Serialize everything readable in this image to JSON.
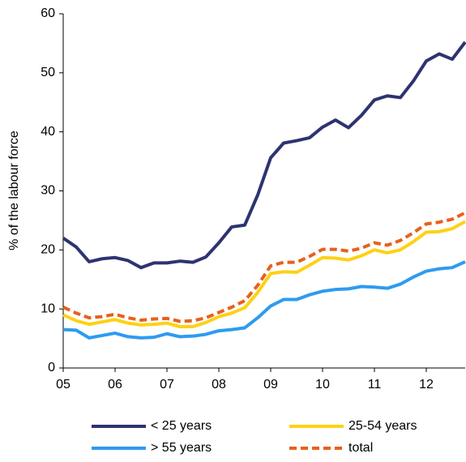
{
  "chart_data": {
    "type": "line",
    "ylabel": "% of the labour force",
    "x": [
      5,
      5.25,
      5.5,
      5.75,
      6,
      6.25,
      6.5,
      6.75,
      7,
      7.25,
      7.5,
      7.75,
      8,
      8.25,
      8.5,
      8.75,
      9,
      9.25,
      9.5,
      9.75,
      10,
      10.25,
      10.5,
      10.75,
      11,
      11.25,
      11.5,
      11.75,
      12,
      12.25,
      12.5,
      12.75
    ],
    "series": [
      {
        "name": "< 25 years",
        "color": "#2e3370",
        "dashed": false,
        "values": [
          22,
          20.5,
          18,
          18.5,
          18.7,
          18.2,
          17,
          17.8,
          17.8,
          18.1,
          17.9,
          18.8,
          21.2,
          23.9,
          24.2,
          29.3,
          35.6,
          38.1,
          38.5,
          39,
          40.8,
          42,
          40.7,
          42.8,
          45.4,
          46.1,
          45.8,
          48.6,
          52,
          53.2,
          52.3,
          55.2
        ]
      },
      {
        "name": "25-54 years",
        "color": "#fdd116",
        "dashed": false,
        "values": [
          9,
          8,
          7.4,
          7.8,
          8.2,
          7.6,
          7.3,
          7.4,
          7.6,
          7,
          7,
          7.7,
          8.7,
          9.3,
          10.2,
          12.8,
          16,
          16.3,
          16.2,
          17.4,
          18.7,
          18.6,
          18.3,
          19,
          20,
          19.5,
          20,
          21.4,
          23,
          23.1,
          23.6,
          24.8
        ]
      },
      {
        "name": "> 55 years",
        "color": "#2e9bef",
        "dashed": false,
        "values": [
          6.5,
          6.4,
          5.1,
          5.5,
          5.9,
          5.3,
          5.1,
          5.2,
          5.8,
          5.3,
          5.4,
          5.7,
          6.3,
          6.5,
          6.8,
          8.5,
          10.5,
          11.6,
          11.6,
          12.4,
          13,
          13.3,
          13.4,
          13.8,
          13.7,
          13.5,
          14.2,
          15.4,
          16.4,
          16.8,
          17,
          18
        ]
      },
      {
        "name": "total",
        "color": "#e8601c",
        "dashed": true,
        "values": [
          10.3,
          9.3,
          8.5,
          8.7,
          9.1,
          8.5,
          8.1,
          8.3,
          8.4,
          7.9,
          8,
          8.5,
          9.4,
          10.3,
          11.4,
          14,
          17.3,
          17.9,
          17.9,
          18.9,
          20.1,
          20.1,
          19.8,
          20.3,
          21.2,
          20.8,
          21.6,
          22.9,
          24.4,
          24.7,
          25.2,
          26.3
        ]
      }
    ],
    "xlim": [
      5,
      12.75
    ],
    "xticks": [
      {
        "value": 5,
        "label": "05"
      },
      {
        "value": 6,
        "label": "06"
      },
      {
        "value": 7,
        "label": "07"
      },
      {
        "value": 8,
        "label": "08"
      },
      {
        "value": 9,
        "label": "09"
      },
      {
        "value": 10,
        "label": "10"
      },
      {
        "value": 11,
        "label": "11"
      },
      {
        "value": 12,
        "label": "12"
      }
    ],
    "ylim": [
      0,
      60
    ],
    "yticks": [
      0,
      10,
      20,
      30,
      40,
      50,
      60
    ],
    "grid": false,
    "legend": "bottom"
  }
}
